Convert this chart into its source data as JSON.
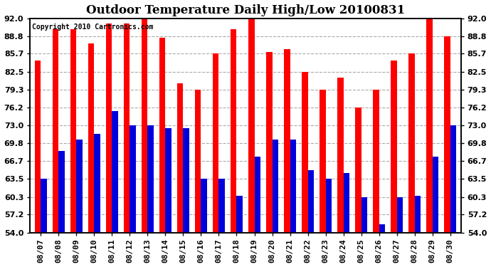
{
  "title": "Outdoor Temperature Daily High/Low 20100831",
  "copyright": "Copyright 2010 Cartronics.com",
  "dates": [
    "08/07",
    "08/08",
    "08/09",
    "08/10",
    "08/11",
    "08/12",
    "08/13",
    "08/14",
    "08/15",
    "08/16",
    "08/17",
    "08/18",
    "08/19",
    "08/20",
    "08/21",
    "08/22",
    "08/23",
    "08/24",
    "08/25",
    "08/26",
    "08/27",
    "08/28",
    "08/29",
    "08/30"
  ],
  "highs": [
    84.5,
    90.0,
    90.0,
    87.5,
    91.0,
    91.0,
    92.0,
    88.5,
    80.5,
    79.3,
    85.7,
    90.0,
    92.0,
    86.0,
    86.5,
    82.5,
    79.3,
    81.5,
    76.2,
    79.3,
    84.5,
    85.7,
    92.0,
    88.8
  ],
  "lows": [
    63.5,
    68.5,
    70.5,
    71.5,
    75.5,
    73.0,
    73.0,
    72.5,
    72.5,
    63.5,
    63.5,
    60.5,
    67.5,
    70.5,
    70.5,
    65.0,
    63.5,
    64.5,
    60.3,
    55.5,
    60.3,
    60.5,
    67.5,
    73.0
  ],
  "high_color": "#FF0000",
  "low_color": "#0000DD",
  "bg_color": "#FFFFFF",
  "grid_color": "#AAAAAA",
  "ylim_min": 54.0,
  "ylim_max": 92.0,
  "yticks": [
    54.0,
    57.2,
    60.3,
    63.5,
    66.7,
    69.8,
    73.0,
    76.2,
    79.3,
    82.5,
    85.7,
    88.8,
    92.0
  ],
  "bar_width": 0.35,
  "title_fontsize": 12,
  "tick_fontsize": 8,
  "label_fontsize": 8
}
